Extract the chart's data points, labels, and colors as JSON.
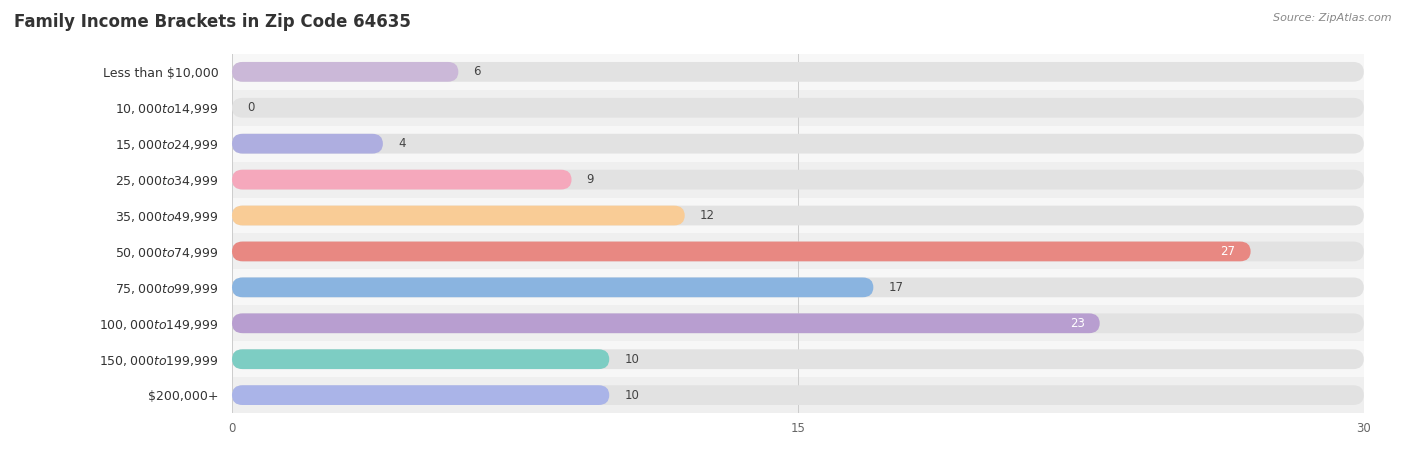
{
  "title": "Family Income Brackets in Zip Code 64635",
  "source": "Source: ZipAtlas.com",
  "categories": [
    "Less than $10,000",
    "$10,000 to $14,999",
    "$15,000 to $24,999",
    "$25,000 to $34,999",
    "$35,000 to $49,999",
    "$50,000 to $74,999",
    "$75,000 to $99,999",
    "$100,000 to $149,999",
    "$150,000 to $199,999",
    "$200,000+"
  ],
  "values": [
    6,
    0,
    4,
    9,
    12,
    27,
    17,
    23,
    10,
    10
  ],
  "bar_colors": [
    "#cbb8d8",
    "#7dcdc3",
    "#aeaee0",
    "#f5a8bc",
    "#f9cc96",
    "#e88882",
    "#8ab4e0",
    "#b89ed0",
    "#7dcdc3",
    "#aab4e8"
  ],
  "xlim": [
    0,
    30
  ],
  "xticks": [
    0,
    15,
    30
  ],
  "title_fontsize": 12,
  "label_fontsize": 9,
  "value_fontsize": 8.5,
  "bar_height": 0.55
}
